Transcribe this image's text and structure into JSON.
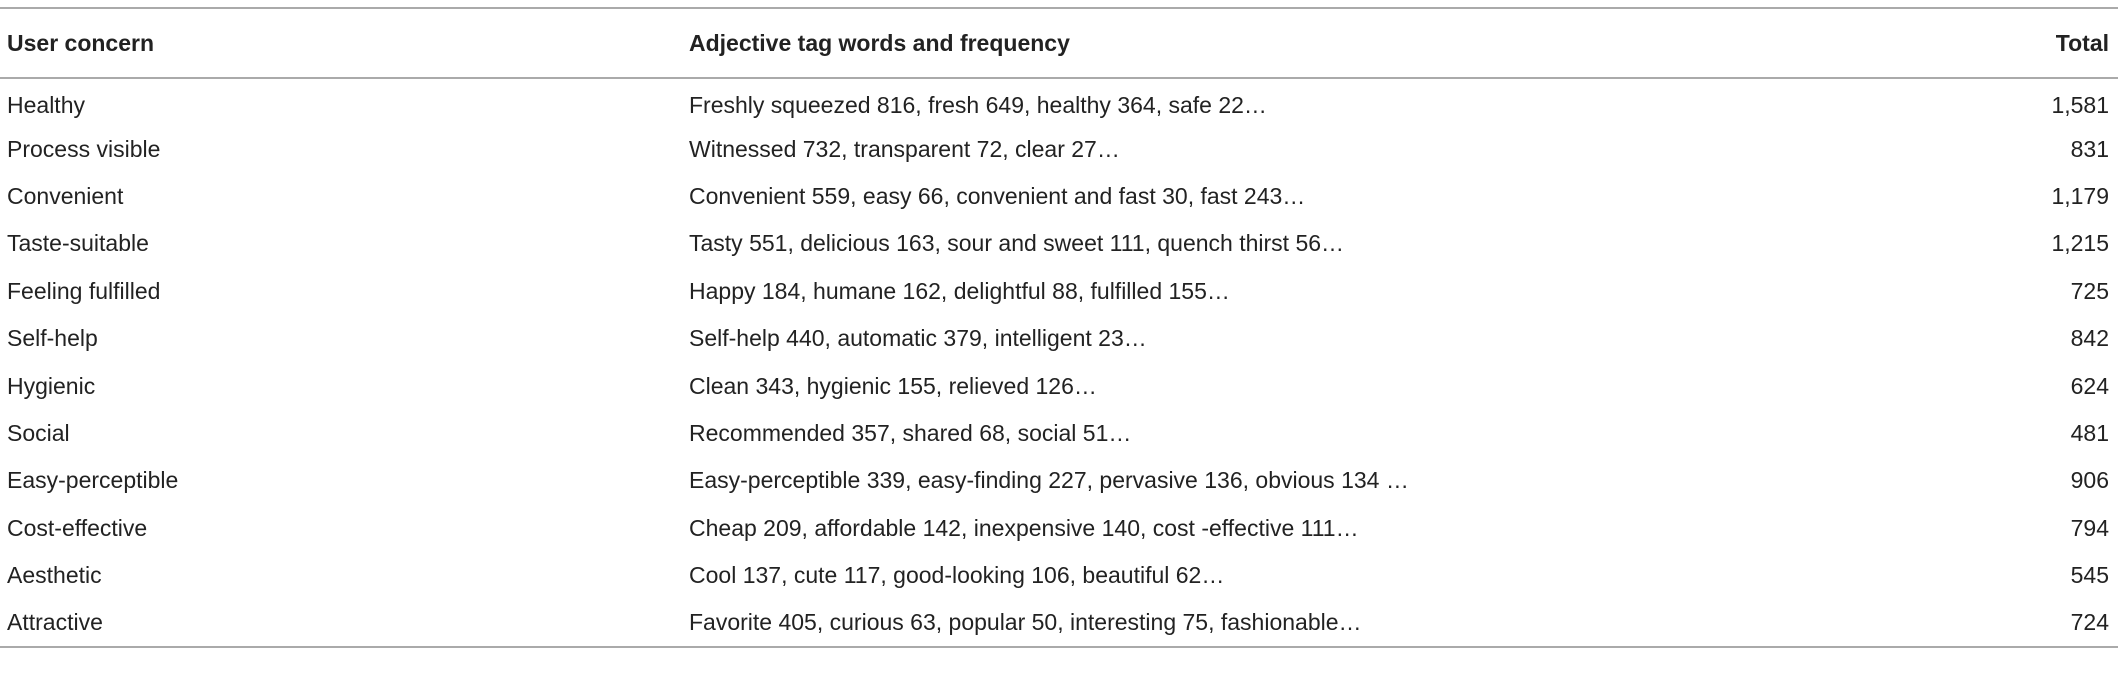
{
  "table": {
    "header": [
      "User concern",
      "Adjective tag words and frequency",
      "Total"
    ],
    "rows": [
      [
        "Healthy",
        "Freshly squeezed 816, fresh 649, healthy 364, safe 22…",
        "1,581"
      ],
      [
        "Process visible",
        "Witnessed 732, transparent 72, clear 27…",
        "831"
      ],
      [
        "Convenient",
        "Convenient 559, easy 66, convenient and fast 30, fast 243…",
        "1,179"
      ],
      [
        "Taste-suitable",
        "Tasty 551, delicious 163, sour and sweet 111, quench thirst 56…",
        "1,215"
      ],
      [
        "Feeling fulfilled",
        "Happy 184, humane 162, delightful 88, fulfilled 155…",
        "725"
      ],
      [
        "Self-help",
        "Self-help 440, automatic 379, intelligent 23…",
        "842"
      ],
      [
        "Hygienic",
        "Clean 343, hygienic 155, relieved 126…",
        "624"
      ],
      [
        "Social",
        "Recommended 357, shared 68, social 51…",
        "481"
      ],
      [
        "Easy-perceptible",
        "Easy-perceptible 339, easy-finding 227, pervasive 136, obvious 134 …",
        "906"
      ],
      [
        "Cost-effective",
        "Cheap 209, affordable 142, inexpensive 140, cost -effective 111…",
        "794"
      ],
      [
        "Aesthetic",
        "Cool 137, cute 117, good-looking 106, beautiful 62…",
        "545"
      ],
      [
        "Attractive",
        "Favorite 405, curious 63, popular 50, interesting 75, fashionable…",
        "724"
      ]
    ]
  }
}
